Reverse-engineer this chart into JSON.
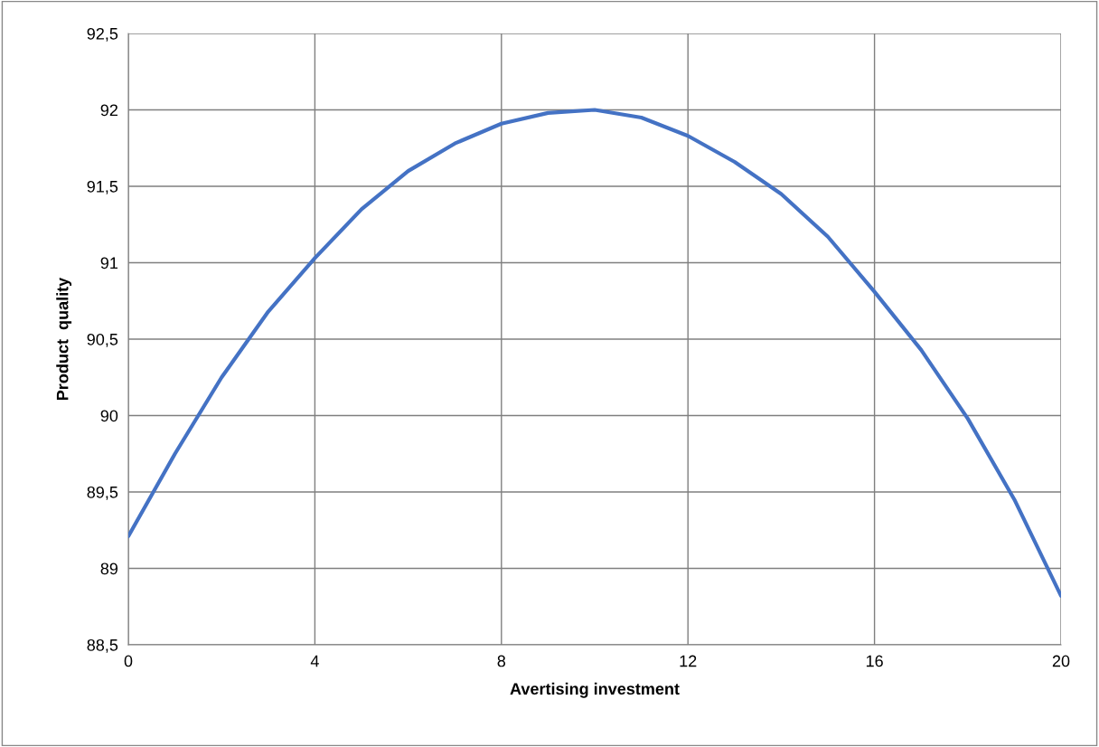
{
  "chart_data": {
    "type": "line",
    "xlabel": "Avertising investment",
    "ylabel": "Product  quality",
    "x": [
      0,
      1,
      2,
      3,
      4,
      5,
      6,
      7,
      8,
      9,
      10,
      11,
      12,
      13,
      14,
      15,
      16,
      17,
      18,
      19,
      20
    ],
    "series": [
      {
        "color": "#4472c4",
        "values": [
          89.21,
          89.75,
          90.25,
          90.68,
          91.03,
          91.35,
          91.6,
          91.78,
          91.91,
          91.98,
          92.0,
          91.95,
          91.83,
          91.66,
          91.45,
          91.17,
          90.81,
          90.43,
          89.98,
          89.45,
          88.82
        ]
      }
    ],
    "xlim": [
      0,
      20
    ],
    "xticks": [
      0,
      4,
      8,
      12,
      16,
      20
    ],
    "ylim": [
      88.5,
      92.5
    ],
    "yticks": [
      {
        "value": 88.5,
        "label": "88,5"
      },
      89,
      {
        "value": 89.5,
        "label": "89,5"
      },
      90,
      {
        "value": 90.5,
        "label": "90,5"
      },
      91,
      {
        "value": 91.5,
        "label": "91,5"
      },
      92,
      {
        "value": 92.5,
        "label": "92,5"
      }
    ],
    "grid": true,
    "marker": "none",
    "line_style": "solid"
  }
}
